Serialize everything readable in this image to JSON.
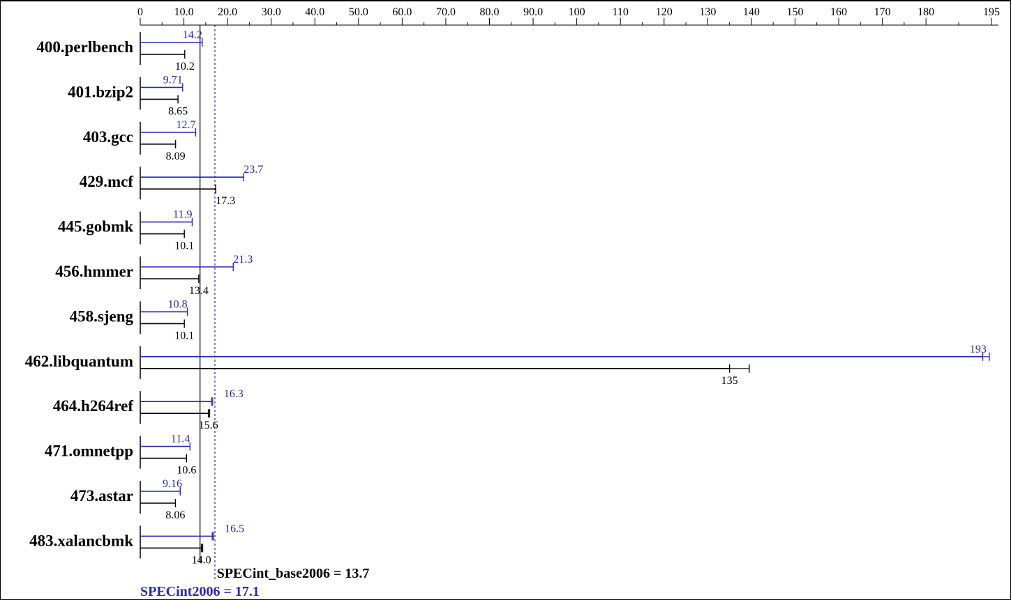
{
  "chart_data": {
    "type": "bar",
    "orientation": "horizontal",
    "xlim": [
      0,
      195
    ],
    "tick_labels": [
      "0",
      "10.0",
      "20.0",
      "30.0",
      "40.0",
      "50.0",
      "60.0",
      "70.0",
      "80.0",
      "90.0",
      "100",
      "110",
      "120",
      "130",
      "140",
      "150",
      "160",
      "170",
      "180",
      "195"
    ],
    "tick_values": [
      0,
      10,
      20,
      30,
      40,
      50,
      60,
      70,
      80,
      90,
      100,
      110,
      120,
      130,
      140,
      150,
      160,
      170,
      180,
      195
    ],
    "categories": [
      "400.perlbench",
      "401.bzip2",
      "403.gcc",
      "429.mcf",
      "445.gobmk",
      "456.hmmer",
      "458.sjeng",
      "462.libquantum",
      "464.h264ref",
      "471.omnetpp",
      "473.astar",
      "483.xalancbmk"
    ],
    "series": [
      {
        "name": "SPECint2006",
        "color": "#2828b0",
        "values": [
          14.2,
          9.71,
          12.7,
          23.7,
          11.9,
          21.3,
          10.8,
          193,
          16.3,
          11.4,
          9.16,
          16.5
        ],
        "labels": [
          "14.2",
          "9.71",
          "12.7",
          "23.7",
          "11.9",
          "21.3",
          "10.8",
          "193",
          "16.3",
          "11.4",
          "9.16",
          "16.5"
        ]
      },
      {
        "name": "SPECint_base2006",
        "color": "#000000",
        "values": [
          10.2,
          8.65,
          8.09,
          17.3,
          10.1,
          13.4,
          10.1,
          135,
          15.6,
          10.6,
          8.06,
          14.0
        ],
        "labels": [
          "10.2",
          "8.65",
          "8.09",
          "17.3",
          "10.1",
          "13.4",
          "10.1",
          "135",
          "15.6",
          "10.6",
          "8.06",
          "14.0"
        ]
      }
    ],
    "peak_whisker_max": [
      14.2,
      9.71,
      12.7,
      23.7,
      11.9,
      21.3,
      10.8,
      194.5,
      16.6,
      11.4,
      9.16,
      16.8
    ],
    "base_whisker_max": [
      10.2,
      8.65,
      8.09,
      17.3,
      10.1,
      13.4,
      10.1,
      139.5,
      15.9,
      10.6,
      8.06,
      14.3
    ],
    "reference_lines": [
      {
        "name": "SPECint_base2006",
        "value": 13.7,
        "color": "#000000",
        "style": "solid",
        "label": "SPECint_base2006 = 13.7"
      },
      {
        "name": "SPECint2006",
        "value": 17.1,
        "color": "#2828b0",
        "style": "dotted",
        "label": "SPECint2006 = 17.1"
      }
    ]
  }
}
